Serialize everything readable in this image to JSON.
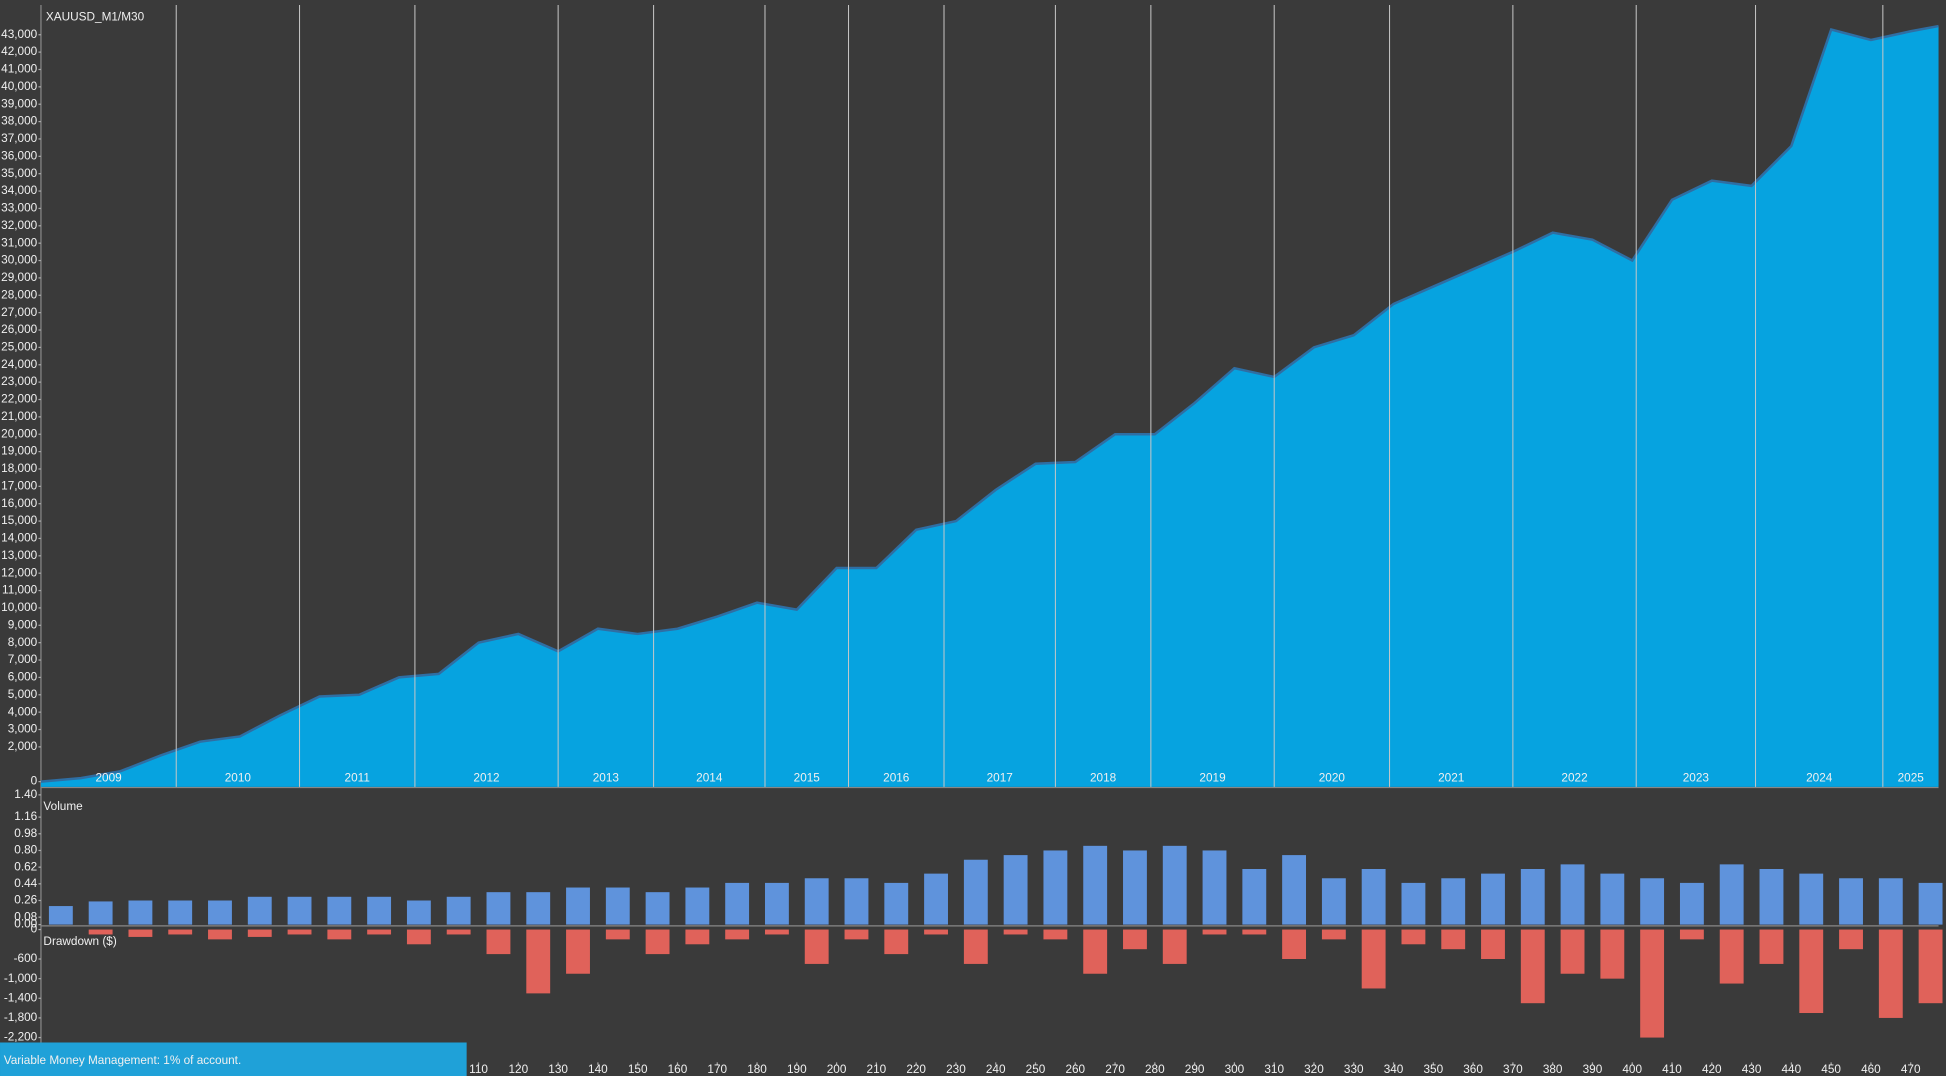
{
  "chart_data": [
    {
      "type": "area",
      "title": "XAUUSD_M1/M30",
      "color": "#06a3e0",
      "line_color": "#2f6ea3",
      "x": [
        0,
        10,
        20,
        30,
        40,
        50,
        60,
        70,
        80,
        90,
        100,
        110,
        120,
        130,
        140,
        150,
        160,
        170,
        180,
        190,
        200,
        210,
        220,
        230,
        240,
        250,
        260,
        270,
        280,
        290,
        300,
        310,
        320,
        330,
        340,
        350,
        360,
        370,
        380,
        390,
        400,
        410,
        420,
        430,
        440,
        450,
        460,
        470,
        477
      ],
      "values": [
        0,
        200,
        600,
        1500,
        2300,
        2600,
        3800,
        4900,
        5000,
        6000,
        6200,
        8000,
        8500,
        7500,
        8800,
        8500,
        8800,
        9500,
        10300,
        9900,
        12300,
        12300,
        14500,
        15000,
        16800,
        18300,
        18400,
        20000,
        20000,
        21800,
        23800,
        23300,
        25000,
        25700,
        27500,
        28500,
        29500,
        30500,
        31600,
        31200,
        30000,
        33500,
        34600,
        34300,
        36600,
        43300,
        42700,
        43200,
        43500
      ],
      "xlim": [
        0,
        477
      ],
      "ylim": [
        -300,
        44500
      ],
      "yticks": [
        0,
        {
          "value": 2000,
          "label": "2,000"
        },
        {
          "value": 3000,
          "label": "3,000"
        },
        {
          "value": 4000,
          "label": "4,000"
        },
        {
          "value": 5000,
          "label": "5,000"
        },
        {
          "value": 6000,
          "label": "6,000"
        },
        {
          "value": 7000,
          "label": "7,000"
        },
        {
          "value": 8000,
          "label": "8,000"
        },
        {
          "value": 9000,
          "label": "9,000"
        },
        {
          "value": 10000,
          "label": "10,000"
        },
        {
          "value": 11000,
          "label": "11,000"
        },
        {
          "value": 12000,
          "label": "12,000"
        },
        {
          "value": 13000,
          "label": "13,000"
        },
        {
          "value": 14000,
          "label": "14,000"
        },
        {
          "value": 15000,
          "label": "15,000"
        },
        {
          "value": 16000,
          "label": "16,000"
        },
        {
          "value": 17000,
          "label": "17,000"
        },
        {
          "value": 18000,
          "label": "18,000"
        },
        {
          "value": 19000,
          "label": "19,000"
        },
        {
          "value": 20000,
          "label": "20,000"
        },
        {
          "value": 21000,
          "label": "21,000"
        },
        {
          "value": 22000,
          "label": "22,000"
        },
        {
          "value": 23000,
          "label": "23,000"
        },
        {
          "value": 24000,
          "label": "24,000"
        },
        {
          "value": 25000,
          "label": "25,000"
        },
        {
          "value": 26000,
          "label": "26,000"
        },
        {
          "value": 27000,
          "label": "27,000"
        },
        {
          "value": 28000,
          "label": "28,000"
        },
        {
          "value": 29000,
          "label": "29,000"
        },
        {
          "value": 30000,
          "label": "30,000"
        },
        {
          "value": 31000,
          "label": "31,000"
        },
        {
          "value": 32000,
          "label": "32,000"
        },
        {
          "value": 33000,
          "label": "33,000"
        },
        {
          "value": 34000,
          "label": "34,000"
        },
        {
          "value": 35000,
          "label": "35,000"
        },
        {
          "value": 36000,
          "label": "36,000"
        },
        {
          "value": 37000,
          "label": "37,000"
        },
        {
          "value": 38000,
          "label": "38,000"
        },
        {
          "value": 39000,
          "label": "39,000"
        },
        {
          "value": 40000,
          "label": "40,000"
        },
        {
          "value": 41000,
          "label": "41,000"
        },
        {
          "value": 42000,
          "label": "42,000"
        },
        {
          "value": 43000,
          "label": "43,000"
        }
      ],
      "years": [
        "2009",
        "2010",
        "2011",
        "2012",
        "2013",
        "2014",
        "2015",
        "2016",
        "2017",
        "2018",
        "2019",
        "2020",
        "2021",
        "2022",
        "2023",
        "2024",
        "2025"
      ],
      "year_breaks": [
        34,
        65,
        94,
        130,
        154,
        182,
        203,
        227,
        255,
        279,
        310,
        339,
        370,
        401,
        431,
        463
      ]
    },
    {
      "type": "bar",
      "title": "Volume",
      "color": "#5f93dc",
      "x": [
        5,
        15,
        25,
        35,
        45,
        55,
        65,
        75,
        85,
        95,
        105,
        115,
        125,
        135,
        145,
        155,
        165,
        175,
        185,
        195,
        205,
        215,
        225,
        235,
        245,
        255,
        265,
        275,
        285,
        295,
        305,
        315,
        325,
        335,
        345,
        355,
        365,
        375,
        385,
        395,
        405,
        415,
        425,
        435,
        445,
        455,
        465,
        475
      ],
      "values": [
        0.2,
        0.25,
        0.26,
        0.26,
        0.26,
        0.3,
        0.3,
        0.3,
        0.3,
        0.26,
        0.3,
        0.35,
        0.35,
        0.4,
        0.4,
        0.35,
        0.4,
        0.45,
        0.45,
        0.5,
        0.5,
        0.45,
        0.55,
        0.7,
        0.75,
        0.8,
        0.85,
        0.8,
        0.85,
        0.8,
        0.6,
        0.75,
        0.5,
        0.6,
        0.45,
        0.5,
        0.55,
        0.6,
        0.65,
        0.55,
        0.5,
        0.45,
        0.65,
        0.6,
        0.55,
        0.5,
        0.5,
        0.45
      ],
      "xlim": [
        0,
        477
      ],
      "ylim": [
        0,
        1.46
      ],
      "yticks": [
        {
          "value": 1.4,
          "label": "1.40"
        },
        1.16,
        0.98,
        {
          "value": 0.8,
          "label": "0.80"
        },
        0.62,
        0.44,
        0.26,
        0.08,
        {
          "value": 0,
          "label": "0.00"
        }
      ]
    },
    {
      "type": "bar",
      "title": "Drawdown ($)",
      "color": "#e0625a",
      "x": [
        5,
        15,
        25,
        35,
        45,
        55,
        65,
        75,
        85,
        95,
        105,
        115,
        125,
        135,
        145,
        155,
        165,
        175,
        185,
        195,
        205,
        215,
        225,
        235,
        245,
        255,
        265,
        275,
        285,
        295,
        305,
        315,
        325,
        335,
        345,
        355,
        365,
        375,
        385,
        395,
        405,
        415,
        425,
        435,
        445,
        455,
        465,
        475
      ],
      "values": [
        0,
        -100,
        -150,
        -100,
        -200,
        -150,
        -100,
        -200,
        -100,
        -300,
        -100,
        -500,
        -1300,
        -900,
        -200,
        -500,
        -300,
        -200,
        -100,
        -700,
        -200,
        -500,
        -100,
        -700,
        -100,
        -200,
        -900,
        -400,
        -700,
        -100,
        -100,
        -600,
        -200,
        -1200,
        -300,
        -400,
        -600,
        -1500,
        -900,
        -1000,
        -2200,
        -200,
        -1100,
        -700,
        -1700,
        -400,
        -1800,
        -1500
      ],
      "xlim": [
        0,
        477
      ],
      "ylim": [
        -2730,
        0
      ],
      "yticks": [
        0,
        -600,
        {
          "value": -1000,
          "label": "-1,000"
        },
        {
          "value": -1400,
          "label": "-1,400"
        },
        {
          "value": -1800,
          "label": "-1,800"
        },
        {
          "value": -2200,
          "label": "-2,200"
        }
      ],
      "xticks": [
        110,
        120,
        130,
        140,
        150,
        160,
        170,
        180,
        190,
        200,
        210,
        220,
        230,
        240,
        250,
        260,
        270,
        280,
        290,
        300,
        310,
        320,
        330,
        340,
        350,
        360,
        370,
        380,
        390,
        400,
        410,
        420,
        430,
        440,
        450,
        460,
        470
      ]
    }
  ],
  "footer": "Variable Money Management: 1% of account."
}
